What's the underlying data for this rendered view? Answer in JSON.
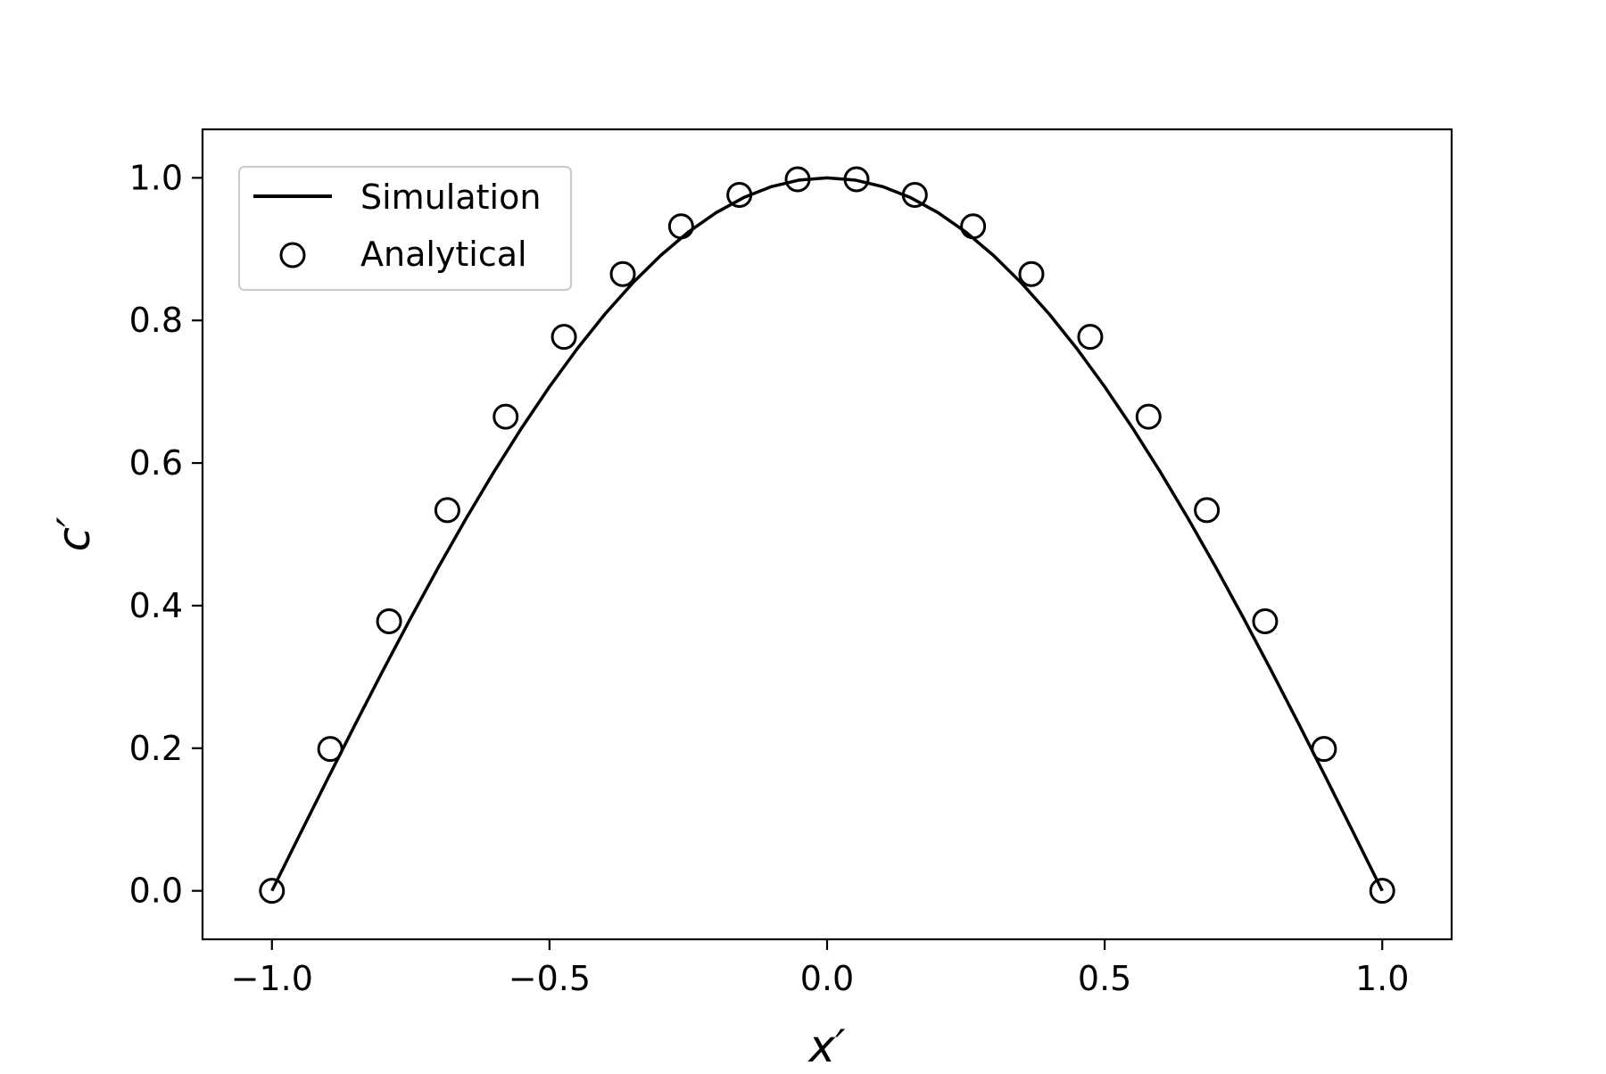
{
  "chart_data": {
    "type": "line",
    "title": "",
    "xlabel": "x′",
    "ylabel": "c′",
    "xlim": [
      -1.125,
      1.125
    ],
    "ylim": [
      -0.068,
      1.068
    ],
    "xticks": [
      -1.0,
      -0.5,
      0.0,
      0.5,
      1.0
    ],
    "xtick_labels": [
      "−1.0",
      "−0.5",
      "0.0",
      "0.5",
      "1.0"
    ],
    "yticks": [
      0.0,
      0.2,
      0.4,
      0.6,
      0.8,
      1.0
    ],
    "ytick_labels": [
      "0.0",
      "0.2",
      "0.4",
      "0.6",
      "0.8",
      "1.0"
    ],
    "grid": false,
    "legend_position": "top-left",
    "series": [
      {
        "name": "Simulation",
        "style": "line",
        "color": "#000000",
        "x": [
          -1.0,
          -0.95,
          -0.9,
          -0.85,
          -0.8,
          -0.75,
          -0.7,
          -0.65,
          -0.6,
          -0.55,
          -0.5,
          -0.45,
          -0.4,
          -0.35,
          -0.3,
          -0.25,
          -0.2,
          -0.15,
          -0.1,
          -0.05,
          0.0,
          0.05,
          0.1,
          0.15,
          0.2,
          0.25,
          0.3,
          0.35,
          0.4,
          0.45,
          0.5,
          0.55,
          0.6,
          0.65,
          0.7,
          0.75,
          0.8,
          0.85,
          0.9,
          0.95,
          1.0
        ],
        "y": [
          0.0,
          0.0785,
          0.1564,
          0.2334,
          0.309,
          0.3827,
          0.454,
          0.5225,
          0.5878,
          0.6494,
          0.7071,
          0.7604,
          0.809,
          0.8526,
          0.891,
          0.9239,
          0.9511,
          0.9724,
          0.9877,
          0.9969,
          1.0,
          0.9969,
          0.9877,
          0.9724,
          0.9511,
          0.9239,
          0.891,
          0.8526,
          0.809,
          0.7604,
          0.7071,
          0.6494,
          0.5878,
          0.5225,
          0.454,
          0.3827,
          0.309,
          0.2334,
          0.1564,
          0.0785,
          0.0
        ]
      },
      {
        "name": "Analytical",
        "style": "markers",
        "marker": "open-circle",
        "color": "#000000",
        "x": [
          -1.0,
          -0.895,
          -0.789,
          -0.684,
          -0.579,
          -0.474,
          -0.368,
          -0.263,
          -0.158,
          -0.053,
          0.053,
          0.158,
          0.263,
          0.368,
          0.474,
          0.579,
          0.684,
          0.789,
          0.895,
          1.0
        ],
        "y": [
          0.0,
          0.199,
          0.378,
          0.534,
          0.665,
          0.777,
          0.865,
          0.932,
          0.976,
          0.998,
          0.998,
          0.976,
          0.932,
          0.865,
          0.777,
          0.665,
          0.534,
          0.378,
          0.199,
          0.0
        ]
      }
    ]
  }
}
